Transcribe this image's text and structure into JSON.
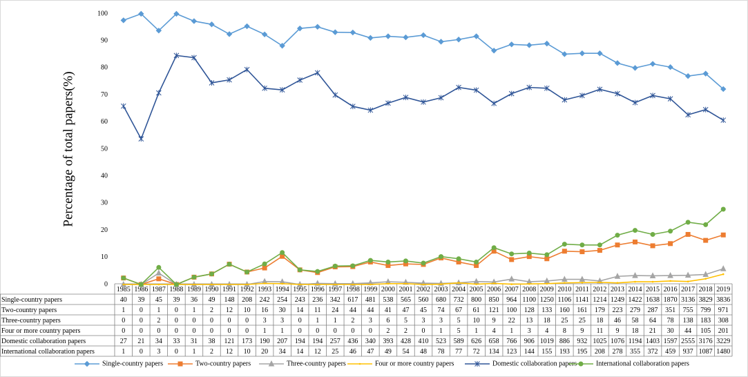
{
  "chart_data": {
    "type": "line",
    "y_label": "Percentage of total papers(%)",
    "categories": [
      "1985",
      "1986",
      "1987",
      "1988",
      "1989",
      "1990",
      "1991",
      "1992",
      "1993",
      "1994",
      "1995",
      "1996",
      "1997",
      "1998",
      "1999",
      "2000",
      "2001",
      "2002",
      "2003",
      "2004",
      "2005",
      "2006",
      "2007",
      "2008",
      "2009",
      "2010",
      "2011",
      "2012",
      "2013",
      "2014",
      "2015",
      "2016",
      "2017",
      "2018",
      "2019"
    ],
    "ylim": [
      0,
      100
    ],
    "yticks": [
      0,
      10,
      20,
      30,
      40,
      50,
      60,
      70,
      80,
      90,
      100
    ],
    "grid": false,
    "legend": "bottom",
    "series": [
      {
        "name": "Single-country papers",
        "color": "#5b9bd5",
        "marker": "diamond",
        "values": [
          97.6,
          100,
          93.8,
          100,
          97.3,
          96.1,
          92.5,
          95.4,
          92.4,
          88.2,
          94.6,
          95.2,
          93.2,
          93.1,
          91.1,
          91.7,
          91.3,
          92.1,
          89.7,
          90.5,
          91.7,
          86.4,
          88.7,
          88.4,
          89.0,
          85.1,
          85.4,
          85.4,
          81.8,
          80.0,
          81.5,
          80.3,
          77.0,
          77.9,
          72.2
        ]
      },
      {
        "name": "Two-country papers",
        "color": "#ed7d31",
        "marker": "square",
        "values": [
          2.4,
          0,
          2.1,
          0,
          2.7,
          3.9,
          7.5,
          4.6,
          6.1,
          10.4,
          5.4,
          4.4,
          6.5,
          6.6,
          8.3,
          7.0,
          7.6,
          7.4,
          9.8,
          8.3,
          7.0,
          12.3,
          9.2,
          10.3,
          9.5,
          12.3,
          12.1,
          12.6,
          14.6,
          15.7,
          14.3,
          15.1,
          18.5,
          16.3,
          18.3
        ]
      },
      {
        "name": "Three-country papers",
        "color": "#a5a5a5",
        "marker": "triangle",
        "values": [
          0,
          0,
          4.2,
          0,
          0,
          0,
          0,
          0,
          1.1,
          1.0,
          0,
          0.4,
          0.3,
          0.3,
          0.6,
          1.0,
          0.8,
          0.5,
          0.4,
          0.6,
          1.1,
          0.9,
          2.0,
          1.0,
          1.3,
          1.9,
          1.9,
          1.3,
          3.0,
          3.3,
          3.2,
          3.3,
          3.4,
          3.7,
          5.8
        ]
      },
      {
        "name": "Four or more country papers",
        "color": "#ffc000",
        "marker": "none",
        "values": [
          0,
          0,
          0,
          0,
          0,
          0,
          0,
          0,
          0.4,
          0.3,
          0,
          0,
          0,
          0,
          0,
          0.3,
          0.3,
          0,
          0.1,
          0.6,
          0.1,
          0.4,
          0.1,
          0.2,
          0.3,
          0.6,
          0.7,
          0.8,
          0.6,
          1.0,
          1.0,
          1.3,
          1.1,
          2.1,
          3.8
        ]
      },
      {
        "name": "Domestic collaboration papers",
        "color": "#2f5597",
        "marker": "star",
        "values": [
          65.9,
          53.8,
          70.8,
          84.6,
          83.8,
          74.5,
          75.6,
          79.4,
          72.5,
          71.9,
          75.5,
          78.2,
          70.0,
          65.8,
          64.4,
          67.0,
          69.1,
          67.4,
          69.0,
          72.8,
          71.8,
          66.9,
          70.5,
          72.8,
          72.5,
          68.2,
          69.8,
          72.1,
          70.5,
          67.2,
          69.8,
          68.6,
          62.7,
          64.6,
          60.7
        ]
      },
      {
        "name": "International collaboration papers",
        "color": "#70ad47",
        "marker": "circle",
        "values": [
          2.4,
          0,
          6.3,
          0,
          2.7,
          3.9,
          7.5,
          4.6,
          7.6,
          11.8,
          5.4,
          4.8,
          6.8,
          6.9,
          8.9,
          8.3,
          8.7,
          7.9,
          10.3,
          9.5,
          8.3,
          13.6,
          11.3,
          11.6,
          11.0,
          14.9,
          14.6,
          14.6,
          18.2,
          20.0,
          18.5,
          19.7,
          23.0,
          22.1,
          27.8
        ]
      }
    ],
    "table": {
      "rows": [
        {
          "label": "Single-country papers",
          "values": [
            40,
            39,
            45,
            39,
            36,
            49,
            148,
            208,
            242,
            254,
            243,
            236,
            342,
            617,
            481,
            538,
            565,
            560,
            680,
            732,
            800,
            850,
            964,
            1100,
            1250,
            1106,
            1141,
            1214,
            1249,
            1422,
            1638,
            1870,
            3136,
            3829,
            3836
          ]
        },
        {
          "label": "Two-country papers",
          "values": [
            1,
            0,
            1,
            0,
            1,
            2,
            12,
            10,
            16,
            30,
            14,
            11,
            24,
            44,
            44,
            41,
            47,
            45,
            74,
            67,
            61,
            121,
            100,
            128,
            133,
            160,
            161,
            179,
            223,
            279,
            287,
            351,
            755,
            799,
            971
          ]
        },
        {
          "label": "Three-country papers",
          "values": [
            0,
            0,
            2,
            0,
            0,
            0,
            0,
            0,
            3,
            3,
            0,
            1,
            1,
            2,
            3,
            6,
            5,
            3,
            3,
            5,
            10,
            9,
            22,
            13,
            18,
            25,
            25,
            18,
            46,
            58,
            64,
            78,
            138,
            183,
            308
          ]
        },
        {
          "label": "Four or more country papers",
          "values": [
            0,
            0,
            0,
            0,
            0,
            0,
            0,
            0,
            1,
            1,
            0,
            0,
            0,
            0,
            0,
            2,
            2,
            0,
            1,
            5,
            1,
            4,
            1,
            3,
            4,
            8,
            9,
            11,
            9,
            18,
            21,
            30,
            44,
            105,
            201
          ]
        },
        {
          "label": "Domestic collaboration papers",
          "values": [
            27,
            21,
            34,
            33,
            31,
            38,
            121,
            173,
            190,
            207,
            194,
            194,
            257,
            436,
            340,
            393,
            428,
            410,
            523,
            589,
            626,
            658,
            766,
            906,
            1019,
            886,
            932,
            1025,
            1076,
            1194,
            1403,
            1597,
            2555,
            3176,
            3229
          ]
        },
        {
          "label": "International collaboration papers",
          "values": [
            1,
            0,
            3,
            0,
            1,
            2,
            12,
            10,
            20,
            34,
            14,
            12,
            25,
            46,
            47,
            49,
            54,
            48,
            78,
            77,
            72,
            134,
            123,
            144,
            155,
            193,
            195,
            208,
            278,
            355,
            372,
            459,
            937,
            1087,
            1480
          ]
        }
      ]
    }
  }
}
